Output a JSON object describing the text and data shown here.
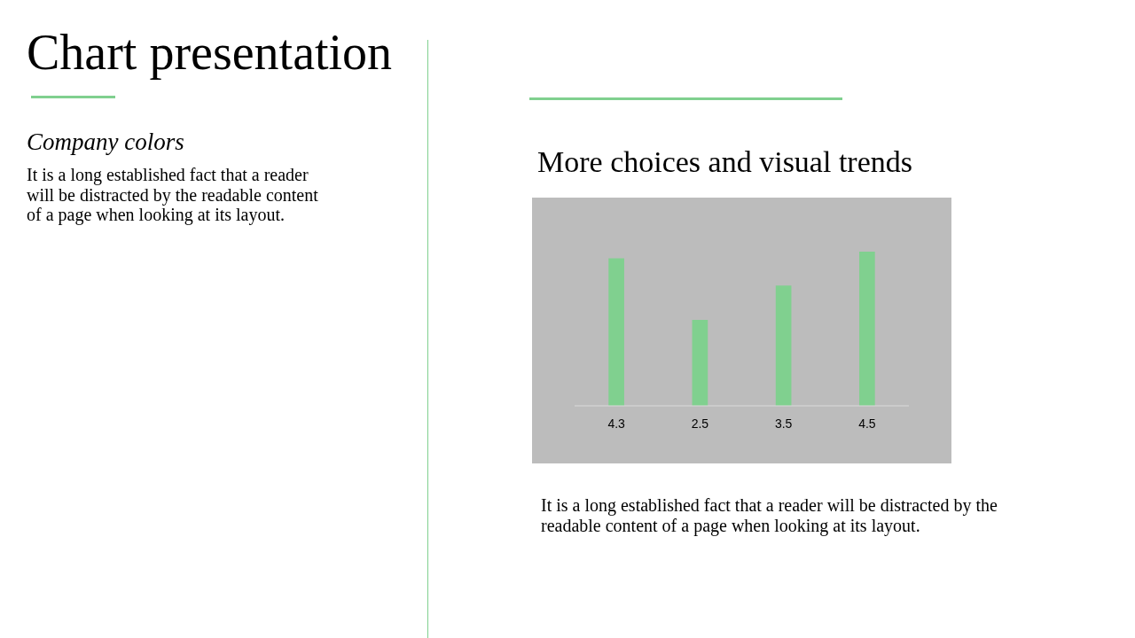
{
  "chart_data": {
    "type": "bar",
    "title": "Chart presentation",
    "subtitle": "Company colors",
    "annotations": [
      "It is a long established fact that a reader will be distracted by the readable content of a page when looking at its layout.",
      "More choices and visual trends",
      "It is a long established fact that a reader will be distracted by the readable content of a page when looking at its layout."
    ],
    "categories": [
      null,
      null,
      null,
      null
    ],
    "values": [
      4.3,
      2.5,
      3.5,
      4.5
    ],
    "color": "#80d08f",
    "data_labels": true
  }
}
